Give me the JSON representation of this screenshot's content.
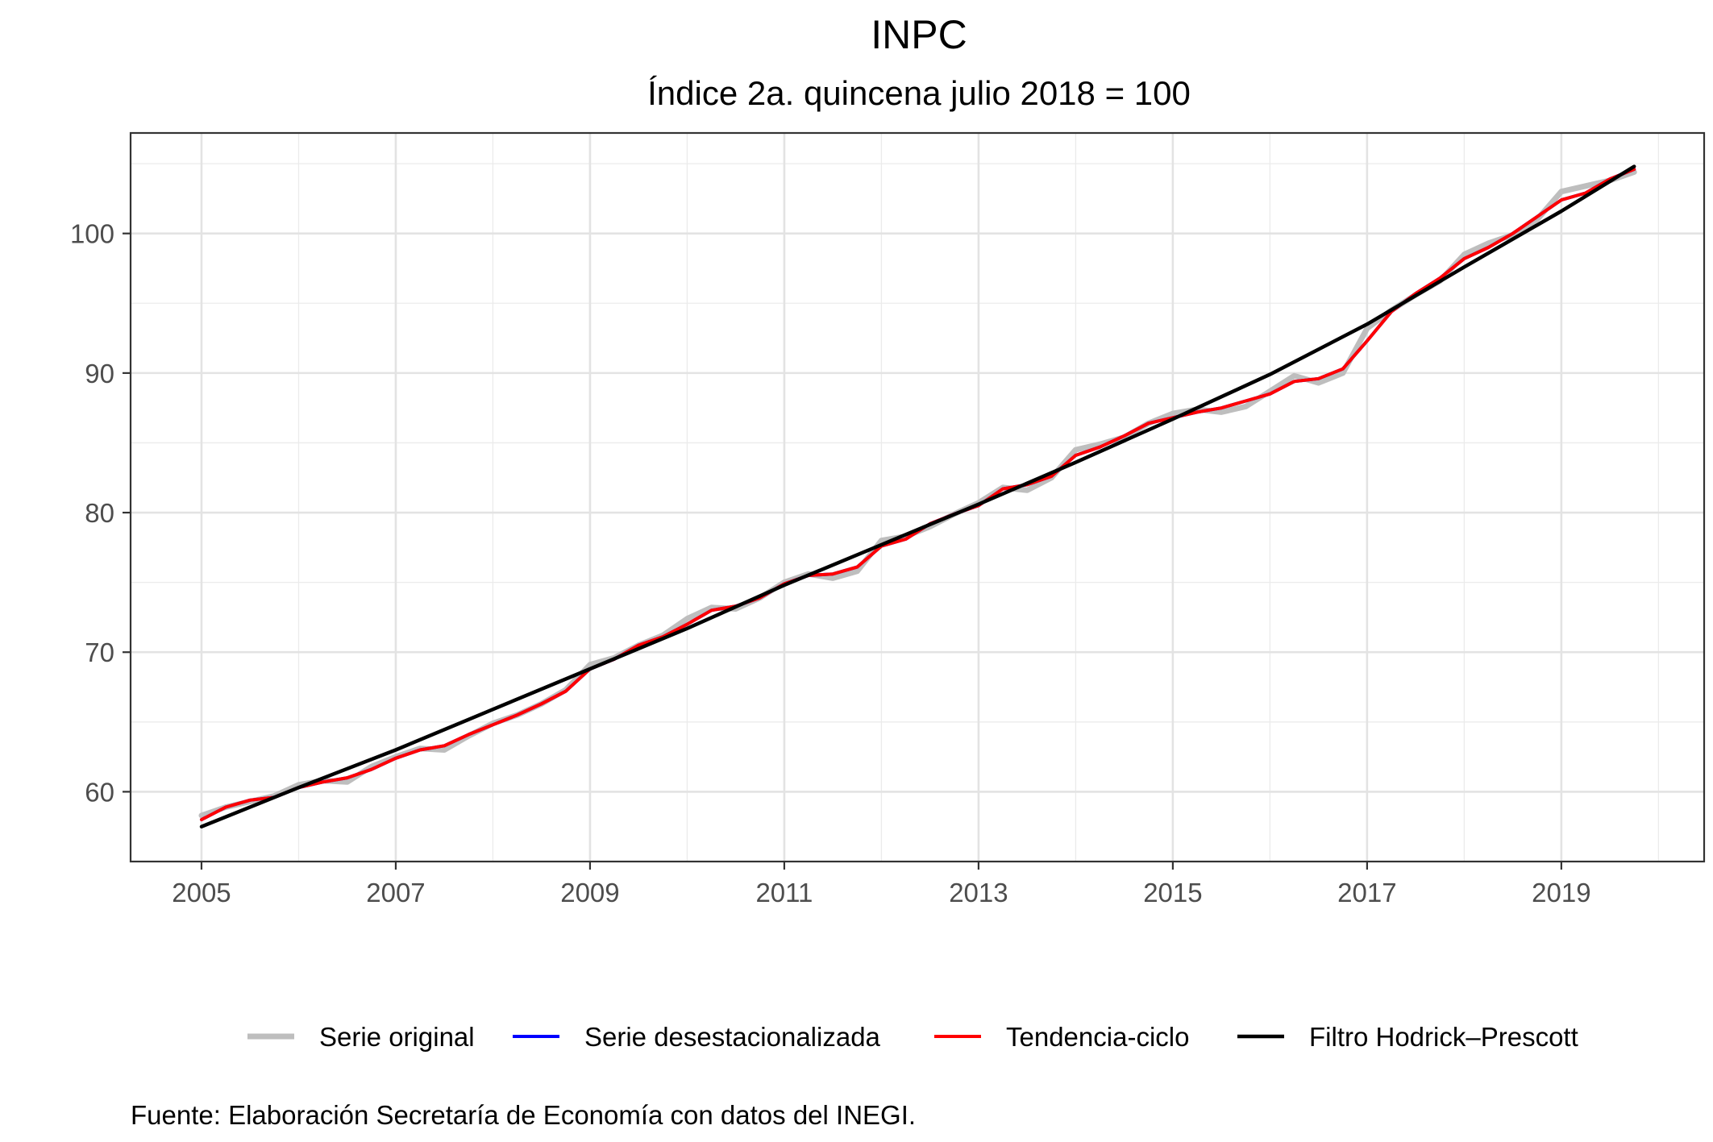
{
  "chart_data": {
    "type": "line",
    "title": "INPC",
    "subtitle": "Índice 2a. quincena julio 2018 = 100",
    "caption": "Fuente: Elaboración Secretaría de Economía con datos del INEGI.",
    "xlabel": "",
    "ylabel": "",
    "xlim": [
      2004.27,
      2020.47
    ],
    "ylim": [
      55.0,
      107.2
    ],
    "x_ticks": [
      2005,
      2007,
      2009,
      2011,
      2013,
      2015,
      2017,
      2019
    ],
    "x_tick_labels": [
      "2005",
      "2007",
      "2009",
      "2011",
      "2013",
      "2015",
      "2017",
      "2019"
    ],
    "y_ticks": [
      60,
      70,
      80,
      90,
      100
    ],
    "y_tick_labels": [
      "60",
      "70",
      "80",
      "90",
      "100"
    ],
    "grid": true,
    "legend_position": "bottom",
    "series": [
      {
        "name": "Serie original",
        "color": "#bebebe",
        "x": [
          2005.0,
          2005.25,
          2005.5,
          2005.75,
          2006.0,
          2006.25,
          2006.5,
          2006.75,
          2007.0,
          2007.25,
          2007.5,
          2007.75,
          2008.0,
          2008.25,
          2008.5,
          2008.75,
          2009.0,
          2009.25,
          2009.5,
          2009.75,
          2010.0,
          2010.25,
          2010.5,
          2010.75,
          2011.0,
          2011.25,
          2011.5,
          2011.75,
          2012.0,
          2012.25,
          2012.5,
          2012.75,
          2013.0,
          2013.25,
          2013.5,
          2013.75,
          2014.0,
          2014.25,
          2014.5,
          2014.75,
          2015.0,
          2015.25,
          2015.5,
          2015.75,
          2016.0,
          2016.25,
          2016.5,
          2016.75,
          2017.0,
          2017.25,
          2017.5,
          2017.75,
          2018.0,
          2018.25,
          2018.5,
          2018.75,
          2019.0,
          2019.25,
          2019.5,
          2019.75
        ],
        "y": [
          58.3,
          58.9,
          59.3,
          59.7,
          60.5,
          60.8,
          60.7,
          61.8,
          62.5,
          63.1,
          63.0,
          64.0,
          64.9,
          65.5,
          66.3,
          67.3,
          69.1,
          69.6,
          70.5,
          71.2,
          72.4,
          73.2,
          73.1,
          73.9,
          75.0,
          75.6,
          75.3,
          75.8,
          78.0,
          78.3,
          79.0,
          79.9,
          80.7,
          81.8,
          81.6,
          82.5,
          84.5,
          84.9,
          85.4,
          86.4,
          87.1,
          87.4,
          87.2,
          87.6,
          88.7,
          89.8,
          89.3,
          90.0,
          93.2,
          94.5,
          95.6,
          96.6,
          98.5,
          99.3,
          99.9,
          101.0,
          103.0,
          103.4,
          103.8,
          104.4
        ]
      },
      {
        "name": "Serie desestacionalizada",
        "color": "#0000ff",
        "x": [
          2005.0,
          2005.25,
          2005.5,
          2005.75,
          2006.0,
          2006.25,
          2006.5,
          2006.75,
          2007.0,
          2007.25,
          2007.5,
          2007.75,
          2008.0,
          2008.25,
          2008.5,
          2008.75,
          2009.0,
          2009.25,
          2009.5,
          2009.75,
          2010.0,
          2010.25,
          2010.5,
          2010.75,
          2011.0,
          2011.25,
          2011.5,
          2011.75,
          2012.0,
          2012.25,
          2012.5,
          2012.75,
          2013.0,
          2013.25,
          2013.5,
          2013.75,
          2014.0,
          2014.25,
          2014.5,
          2014.75,
          2015.0,
          2015.25,
          2015.5,
          2015.75,
          2016.0,
          2016.25,
          2016.5,
          2016.75,
          2017.0,
          2017.25,
          2017.5,
          2017.75,
          2018.0,
          2018.25,
          2018.5,
          2018.75,
          2019.0,
          2019.25,
          2019.5,
          2019.75
        ],
        "y": [
          58.0,
          58.9,
          59.4,
          59.6,
          60.3,
          60.7,
          61.0,
          61.6,
          62.4,
          63.0,
          63.3,
          64.1,
          64.8,
          65.5,
          66.3,
          67.2,
          68.8,
          69.5,
          70.5,
          71.1,
          72.0,
          73.0,
          73.3,
          73.9,
          74.9,
          75.5,
          75.6,
          76.1,
          77.6,
          78.1,
          79.2,
          79.9,
          80.5,
          81.7,
          82.0,
          82.6,
          84.1,
          84.7,
          85.5,
          86.4,
          86.8,
          87.2,
          87.5,
          88.0,
          88.5,
          89.4,
          89.6,
          90.3,
          92.3,
          94.4,
          95.7,
          96.8,
          98.2,
          99.0,
          100.0,
          101.2,
          102.4,
          102.9,
          103.9,
          104.6
        ]
      },
      {
        "name": "Tendencia-ciclo",
        "color": "#ff0000",
        "x": [
          2005.0,
          2005.25,
          2005.5,
          2005.75,
          2006.0,
          2006.25,
          2006.5,
          2006.75,
          2007.0,
          2007.25,
          2007.5,
          2007.75,
          2008.0,
          2008.25,
          2008.5,
          2008.75,
          2009.0,
          2009.25,
          2009.5,
          2009.75,
          2010.0,
          2010.25,
          2010.5,
          2010.75,
          2011.0,
          2011.25,
          2011.5,
          2011.75,
          2012.0,
          2012.25,
          2012.5,
          2012.75,
          2013.0,
          2013.25,
          2013.5,
          2013.75,
          2014.0,
          2014.25,
          2014.5,
          2014.75,
          2015.0,
          2015.25,
          2015.5,
          2015.75,
          2016.0,
          2016.25,
          2016.5,
          2016.75,
          2017.0,
          2017.25,
          2017.5,
          2017.75,
          2018.0,
          2018.25,
          2018.5,
          2018.75,
          2019.0,
          2019.25,
          2019.5,
          2019.75
        ],
        "y": [
          58.0,
          58.9,
          59.4,
          59.6,
          60.3,
          60.7,
          61.0,
          61.6,
          62.4,
          63.0,
          63.3,
          64.1,
          64.8,
          65.5,
          66.3,
          67.2,
          68.8,
          69.5,
          70.5,
          71.1,
          72.0,
          73.0,
          73.3,
          73.9,
          74.9,
          75.5,
          75.6,
          76.1,
          77.6,
          78.1,
          79.2,
          79.9,
          80.5,
          81.7,
          82.0,
          82.6,
          84.1,
          84.7,
          85.5,
          86.4,
          86.8,
          87.2,
          87.5,
          88.0,
          88.5,
          89.4,
          89.6,
          90.3,
          92.3,
          94.4,
          95.7,
          96.8,
          98.2,
          99.0,
          100.0,
          101.2,
          102.4,
          102.9,
          103.9,
          104.6
        ]
      },
      {
        "name": "Filtro Hodrick–Prescott",
        "color": "#000000",
        "x": [
          2005.0,
          2006.0,
          2007.0,
          2008.0,
          2009.0,
          2010.0,
          2011.0,
          2012.0,
          2013.0,
          2014.0,
          2015.0,
          2016.0,
          2017.0,
          2018.0,
          2019.0,
          2019.75
        ],
        "y": [
          57.5,
          60.3,
          63.0,
          65.9,
          68.8,
          71.7,
          74.8,
          77.7,
          80.6,
          83.6,
          86.7,
          89.9,
          93.5,
          97.6,
          101.6,
          104.8
        ]
      }
    ]
  }
}
